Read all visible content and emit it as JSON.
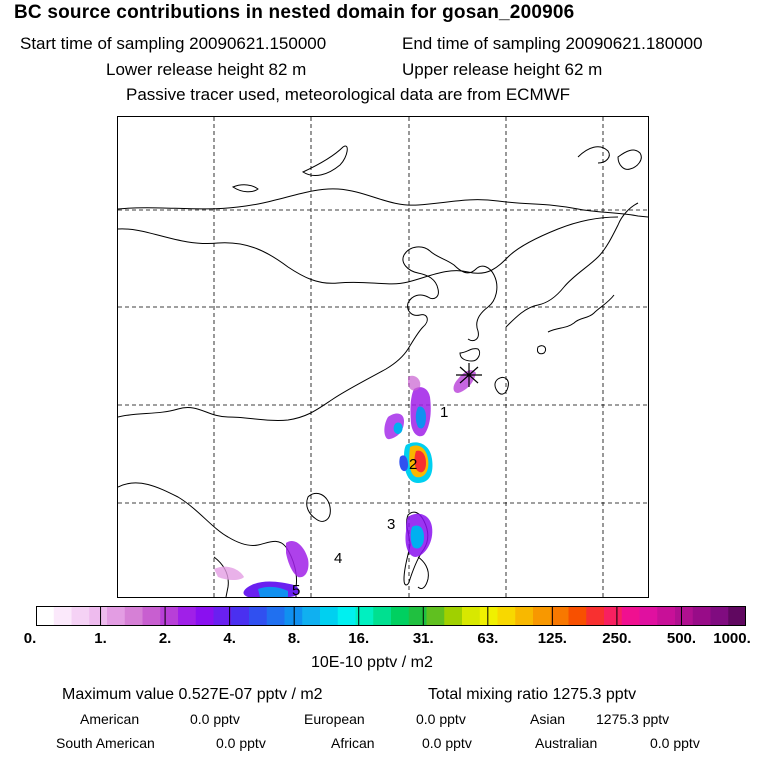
{
  "header": {
    "title": "BC  source contributions in nested domain for gosan_200906",
    "start_time": "Start time of sampling 20090621.150000",
    "end_time": "End time of sampling 20090621.180000",
    "lower_release": "Lower release height   82 m",
    "upper_release": "Upper release height   62 m",
    "passive_note": "Passive tracer used, meteorological data are from ECMWF"
  },
  "map": {
    "region_labels": [
      "1",
      "2",
      "3",
      "4",
      "5"
    ],
    "receptor_marker": "star-marker",
    "grid": true
  },
  "colorbar": {
    "tick_labels": [
      "0.",
      "1.",
      "2.",
      "4.",
      "8.",
      "16.",
      "31.",
      "63.",
      "125.",
      "250.",
      "500.",
      "1000."
    ],
    "units": "10E-10 pptv / m2",
    "colors": [
      "#ffffff",
      "#fbe9fb",
      "#f5d2f5",
      "#eebbee",
      "#e39de3",
      "#d680d6",
      "#c85fd0",
      "#b83fd8",
      "#a020e8",
      "#8a10f0",
      "#6a20f0",
      "#4a30f0",
      "#3050f0",
      "#2070f0",
      "#1090f0",
      "#10b0f0",
      "#00d0f0",
      "#00f0f0",
      "#00f0c0",
      "#00e090",
      "#00d060",
      "#20c040",
      "#60c020",
      "#a0d000",
      "#d8e800",
      "#f0f000",
      "#f8d800",
      "#f8b800",
      "#f89800",
      "#f87800",
      "#f85000",
      "#f83030",
      "#f82060",
      "#f01090",
      "#e010a0",
      "#c81098",
      "#b01090",
      "#980c88",
      "#800c80",
      "#600860"
    ]
  },
  "summary": {
    "max_value": "Maximum value  0.527E-07 pptv / m2",
    "total_mixing": "Total mixing ratio      1275.3 pptv",
    "american_label": "American",
    "american_value": "0.0 pptv",
    "european_label": "European",
    "european_value": "0.0 pptv",
    "asian_label": "Asian",
    "asian_value": "1275.3 pptv",
    "south_american_label": "South American",
    "south_american_value": "0.0 pptv",
    "african_label": "African",
    "african_value": "0.0 pptv",
    "australian_label": "Australian",
    "australian_value": "0.0 pptv"
  }
}
